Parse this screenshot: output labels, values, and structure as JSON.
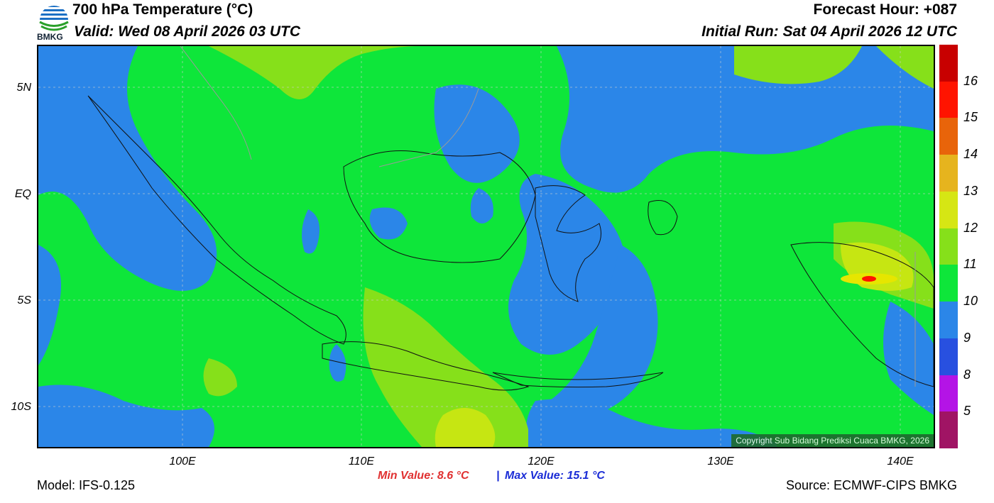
{
  "header": {
    "logo_text": "BMKG",
    "title": "700 hPa Temperature (°C)",
    "valid": "Valid: Wed 08 April 2026 03 UTC",
    "forecast_hour": "Forecast Hour: +087",
    "initial_run": "Initial Run: Sat 04 April 2026 12 UTC"
  },
  "map": {
    "y_ticks": [
      "5N",
      "EQ",
      "5S",
      "10S"
    ],
    "x_ticks": [
      "100E",
      "110E",
      "120E",
      "130E",
      "140E"
    ],
    "copyright": "Copyright Sub Bidang Prediksi Cuaca BMKG, 2026",
    "colors": {
      "background_green": "#0ee63a",
      "blue": "#2b86e8",
      "light_green": "#86e01a",
      "yellow_green": "#c6e612",
      "yellow": "#e6e600"
    }
  },
  "colorbar": {
    "labels": [
      "16",
      "15",
      "14",
      "13",
      "12",
      "11",
      "10",
      "9",
      "8",
      "5"
    ],
    "colors": [
      "#c80000",
      "#ff1400",
      "#e8640a",
      "#e6b41e",
      "#d6e614",
      "#86e01a",
      "#0ee63a",
      "#2b86e8",
      "#2850e0",
      "#b414e6",
      "#a01464"
    ]
  },
  "footer": {
    "model": "Model: IFS-0.125",
    "min_value": "Min Value: 8.6 °C",
    "separator": "|",
    "max_value": "Max Value: 15.1 °C",
    "source": "Source: ECMWF-CIPS BMKG"
  }
}
